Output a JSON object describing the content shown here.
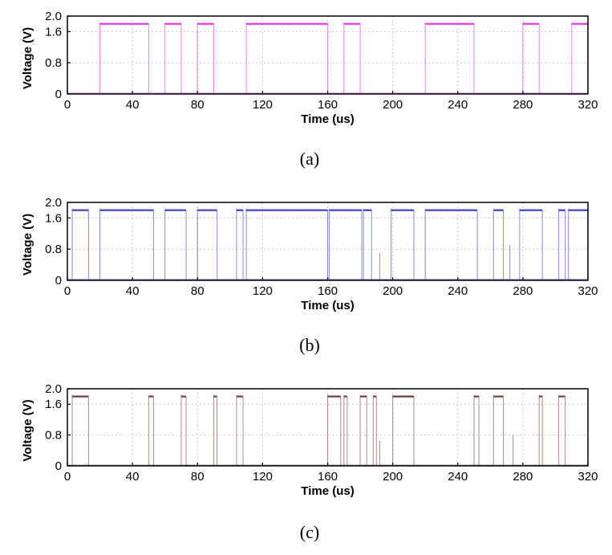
{
  "chart_data": [
    {
      "type": "line",
      "caption": "(a)",
      "xlabel": "Time (us)",
      "ylabel": "Voltage (V)",
      "xlim": [
        0,
        320
      ],
      "ylim": [
        0,
        2.0
      ],
      "xticks": [
        0,
        40,
        80,
        120,
        160,
        200,
        240,
        280,
        320
      ],
      "yticks": [
        0,
        0.8,
        1.6,
        2.0
      ],
      "ytick_labels": [
        "0",
        "0.8",
        "1.6",
        "2.0"
      ],
      "grid": true,
      "series": [
        {
          "color": "#e62ee6",
          "high_level": 1.8,
          "low_level": 0.02,
          "pulses": [
            [
              20,
              50
            ],
            [
              60,
              70
            ],
            [
              80,
              90
            ],
            [
              110,
              160
            ],
            [
              170,
              180
            ],
            [
              220,
              250
            ],
            [
              280,
              290
            ],
            [
              310,
              320
            ]
          ],
          "spikes": []
        }
      ]
    },
    {
      "type": "line",
      "caption": "(b)",
      "xlabel": "Time (us)",
      "ylabel": "Voltage (V)",
      "xlim": [
        0,
        320
      ],
      "ylim": [
        0,
        2.0
      ],
      "xticks": [
        0,
        40,
        80,
        120,
        160,
        200,
        240,
        280,
        320
      ],
      "yticks": [
        0,
        0.8,
        1.6,
        2.0
      ],
      "ytick_labels": [
        "0",
        "0.8",
        "1.6",
        "2.0"
      ],
      "grid": true,
      "series": [
        {
          "color": "#3a3ad0",
          "high_level": 1.8,
          "low_level": 0.02,
          "pulses": [
            [
              3,
              13
            ],
            [
              20,
              53
            ],
            [
              60,
              73
            ],
            [
              80,
              92
            ],
            [
              104,
              108
            ],
            [
              110,
              160
            ],
            [
              161,
              181
            ],
            [
              182,
              187
            ],
            [
              199,
              213
            ],
            [
              220,
              252
            ],
            [
              262,
              268
            ],
            [
              278,
              292
            ],
            [
              302,
              306
            ],
            [
              308,
              320
            ]
          ],
          "spikes": [
            [
              192,
              0.7
            ],
            [
              272,
              0.9
            ]
          ]
        }
      ]
    },
    {
      "type": "line",
      "caption": "(c)",
      "xlabel": "Time (us)",
      "ylabel": "Voltage (V)",
      "xlim": [
        0,
        320
      ],
      "ylim": [
        0,
        2.0
      ],
      "xticks": [
        0,
        40,
        80,
        120,
        160,
        200,
        240,
        280,
        320
      ],
      "yticks": [
        0,
        0.8,
        1.6,
        2.0
      ],
      "ytick_labels": [
        "0",
        "0.8",
        "1.6",
        "2.0"
      ],
      "grid": true,
      "series": [
        {
          "color": "#7a3a3a",
          "high_level": 1.8,
          "low_level": 0.02,
          "pulses": [
            [
              3,
              13
            ],
            [
              50,
              53
            ],
            [
              70,
              73
            ],
            [
              90,
              92
            ],
            [
              104,
              108
            ],
            [
              160,
              168
            ],
            [
              170,
              172
            ],
            [
              180,
              184
            ],
            [
              188,
              190
            ],
            [
              200,
              213
            ],
            [
              250,
              253
            ],
            [
              262,
              268
            ],
            [
              290,
              292
            ],
            [
              302,
              306
            ]
          ],
          "spikes": [
            [
              192,
              0.65
            ],
            [
              274,
              0.8
            ]
          ]
        }
      ]
    }
  ]
}
